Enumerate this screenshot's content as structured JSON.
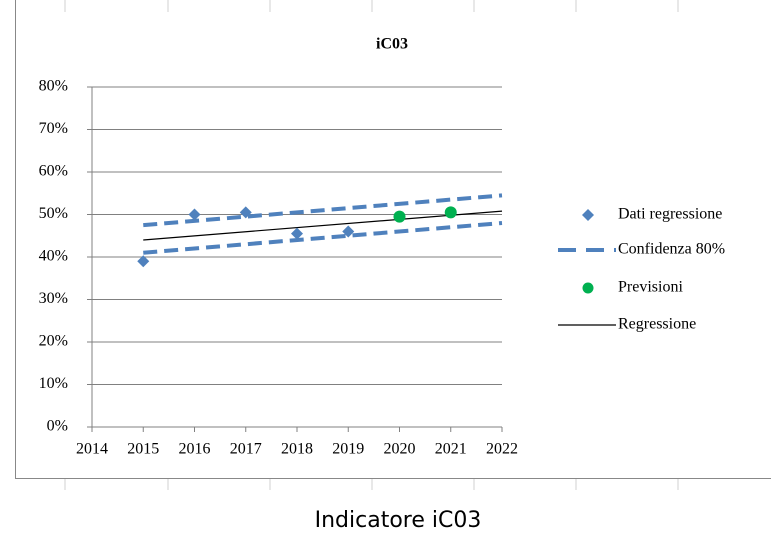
{
  "chart_data": {
    "type": "line",
    "title": "iC03",
    "series": [
      {
        "name": "Dati regressione",
        "color": "#4f81bd",
        "marker": "diamond",
        "x": [
          2015,
          2016,
          2017,
          2018,
          2019
        ],
        "values": [
          39,
          50,
          50.5,
          45.5,
          46
        ]
      },
      {
        "name": "Confidenza 80%",
        "color": "#4f81bd",
        "style": "dashed",
        "x": [
          2015,
          2022
        ],
        "upper": [
          47.5,
          54.5
        ],
        "lower": [
          41,
          48
        ]
      },
      {
        "name": "Previsioni",
        "color": "#00b050",
        "marker": "circle",
        "x": [
          2020,
          2021
        ],
        "values": [
          49.5,
          50.5
        ]
      },
      {
        "name": "Regressione",
        "color": "#000000",
        "style": "solid",
        "x": [
          2015,
          2022
        ],
        "values": [
          44,
          50.8
        ]
      }
    ],
    "xlim": [
      2014,
      2022
    ],
    "xticks": [
      2014,
      2015,
      2016,
      2017,
      2018,
      2019,
      2020,
      2021,
      2022
    ],
    "ylim": [
      0,
      80
    ],
    "yticks": [
      {
        "value": 0,
        "label": "0%"
      },
      {
        "value": 10,
        "label": "10%"
      },
      {
        "value": 20,
        "label": "20%"
      },
      {
        "value": 30,
        "label": "30%"
      },
      {
        "value": 40,
        "label": "40%"
      },
      {
        "value": 50,
        "label": "50%"
      },
      {
        "value": 60,
        "label": "60%"
      },
      {
        "value": 70,
        "label": "70%"
      },
      {
        "value": 80,
        "label": "80%"
      }
    ],
    "grid": true,
    "legend": "right"
  },
  "caption": "Indicatore iC03"
}
